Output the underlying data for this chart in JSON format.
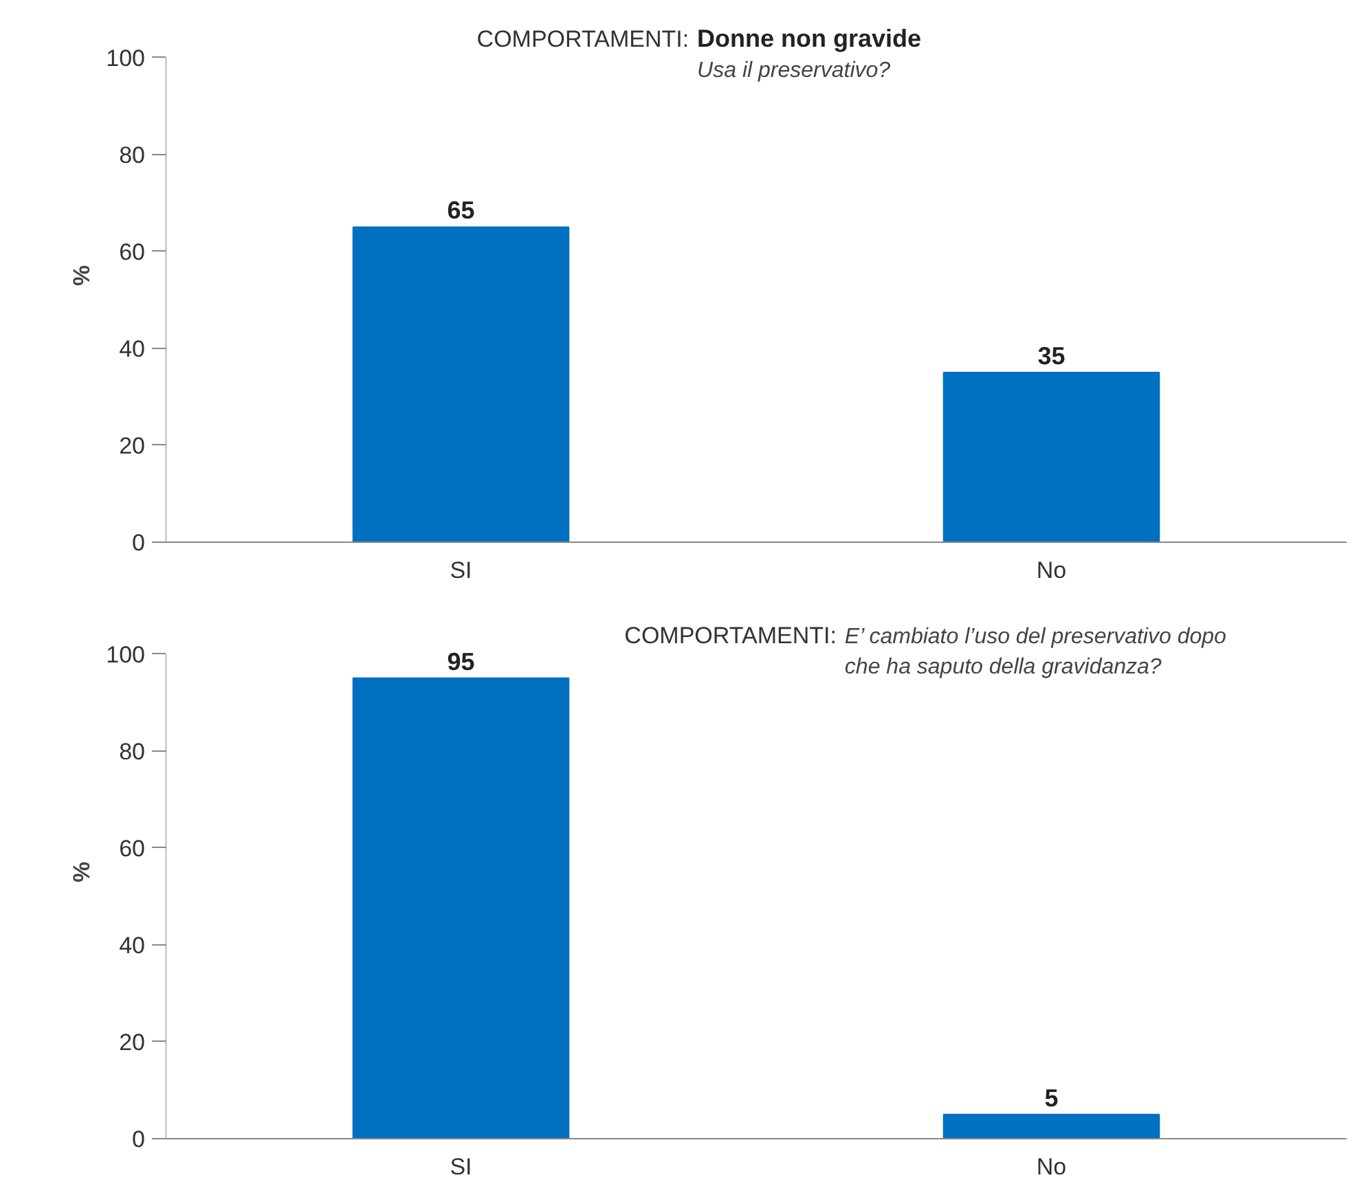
{
  "chart_data": [
    {
      "type": "bar",
      "title": "COMPORTAMENTI:",
      "subtitle": "Donne non gravide",
      "annotations": [
        "Usa il preservativo?"
      ],
      "ylabel": "%",
      "categories": [
        "SI",
        "No"
      ],
      "values": [
        65,
        35
      ],
      "color": "#0070c0",
      "ylim": [
        0,
        100
      ],
      "yticks": [
        0,
        20,
        40,
        60,
        80,
        100
      ],
      "data_labels": true,
      "grid": false
    },
    {
      "type": "bar",
      "title": "COMPORTAMENTI:",
      "annotations": [
        "E’ cambiato l’uso del preservativo dopo che ha saputo della gravidanza?"
      ],
      "ylabel": "%",
      "categories": [
        "SI",
        "No"
      ],
      "values": [
        95,
        5
      ],
      "color": "#0070c0",
      "ylim": [
        0,
        100
      ],
      "yticks": [
        0,
        20,
        40,
        60,
        80,
        100
      ],
      "data_labels": true,
      "grid": false
    }
  ]
}
